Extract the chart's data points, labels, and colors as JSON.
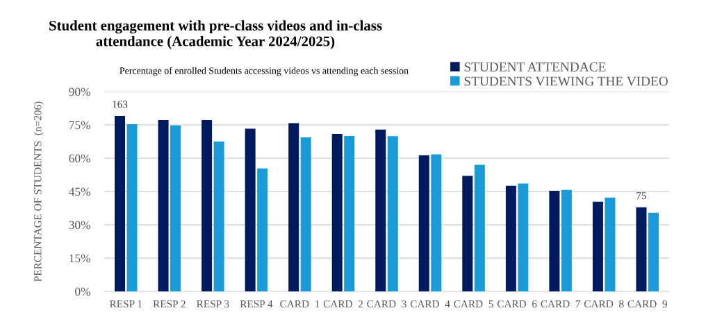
{
  "chart_data": {
    "type": "bar",
    "title": "Student engagement with pre-class videos and in-class\nattendance (Academic Year 2024/2025)",
    "subtitle": "Percentage of enrolled Students accessing videos vs attending each session",
    "ylabel": "PERCENTAGE OF STUDENTS  (n=206)",
    "categories": [
      "RESP 1",
      "RESP 2",
      "RESP 3",
      "RESP 4",
      "CARD  1",
      "CARD  2",
      "CARD  3",
      "CARD  4",
      "CARD  5",
      "CARD  6",
      "CARD  7",
      "CARD  8",
      "CARD  9"
    ],
    "series": [
      {
        "name": "STUDENT ATTENDACE",
        "color": "#001a5e",
        "values": [
          79.1,
          77.2,
          77.2,
          73.3,
          75.8,
          70.9,
          72.9,
          61.3,
          52.0,
          47.6,
          45.3,
          40.4,
          37.9
        ]
      },
      {
        "name": "STUDENTS VIEWING THE VIDEO",
        "color": "#1a9bd7",
        "values": [
          75.3,
          74.8,
          67.5,
          55.4,
          69.4,
          70.0,
          69.9,
          61.7,
          57.0,
          48.6,
          45.7,
          42.3,
          35.4
        ]
      }
    ],
    "annotations": [
      "163",
      "75"
    ],
    "ylim": [
      0,
      90
    ],
    "yticks": [
      {
        "value": 0,
        "label": "0%"
      },
      {
        "value": 15,
        "label": "15%"
      },
      {
        "value": 30,
        "label": "30%"
      },
      {
        "value": 45,
        "label": "45%"
      },
      {
        "value": 60,
        "label": "60%"
      },
      {
        "value": 75,
        "label": "75%"
      },
      {
        "value": 90,
        "label": "90%"
      }
    ],
    "grid": "y",
    "legend": "top right"
  }
}
